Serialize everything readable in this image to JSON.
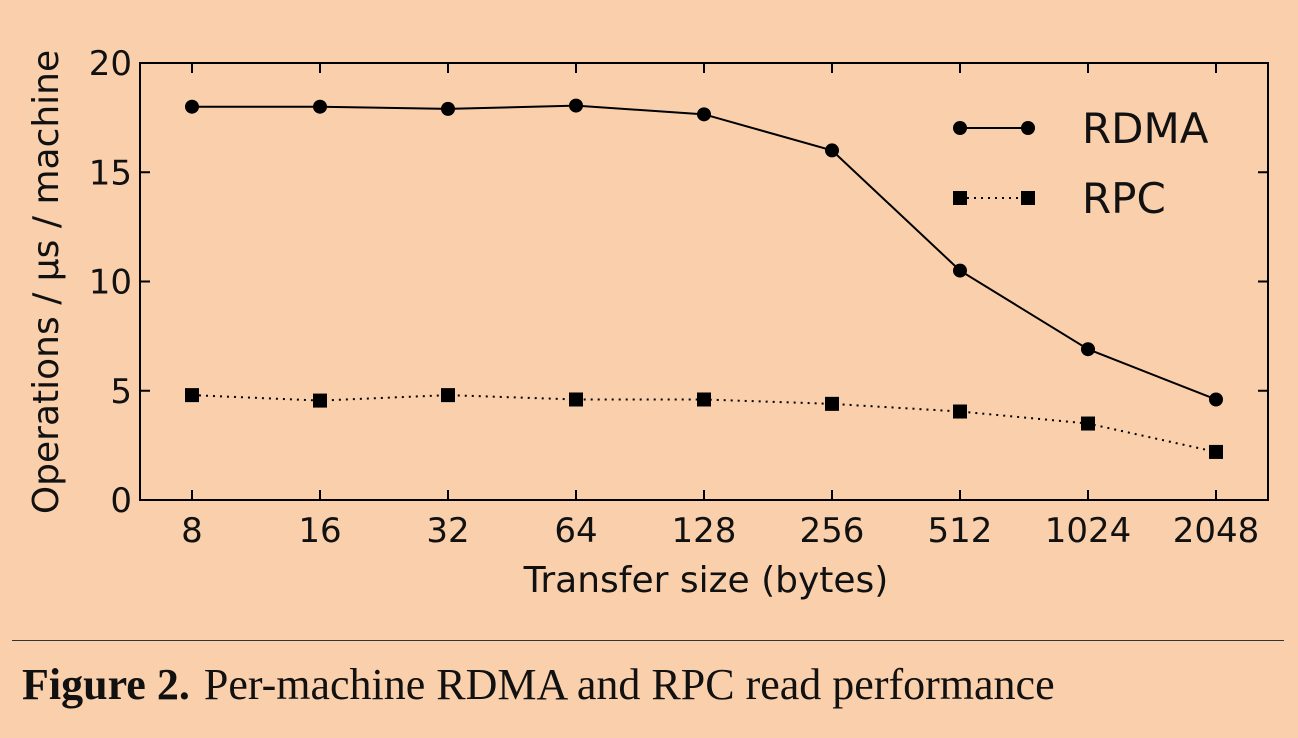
{
  "caption": {
    "label": "Figure 2.",
    "text": "Per-machine RDMA and RPC read performance"
  },
  "chart_data": {
    "type": "line",
    "title": "",
    "xlabel": "Transfer size (bytes)",
    "ylabel": "Operations / μs / machine",
    "x_scale": "log2",
    "categories": [
      "8",
      "16",
      "32",
      "64",
      "128",
      "256",
      "512",
      "1024",
      "2048"
    ],
    "ylim": [
      0,
      20
    ],
    "yticks": [
      "0",
      "5",
      "10",
      "15",
      "20"
    ],
    "grid": false,
    "legend_position": "top-right",
    "series": [
      {
        "name": "RDMA",
        "marker": "circle",
        "linestyle": "solid",
        "values": [
          18.0,
          18.0,
          17.9,
          18.05,
          17.65,
          16.0,
          10.5,
          6.9,
          4.6
        ]
      },
      {
        "name": "RPC",
        "marker": "square",
        "linestyle": "dotted",
        "values": [
          4.8,
          4.55,
          4.8,
          4.6,
          4.6,
          4.4,
          4.05,
          3.5,
          2.2
        ]
      }
    ],
    "colors": {
      "background": "#fad0ac",
      "line": "#000000"
    }
  }
}
